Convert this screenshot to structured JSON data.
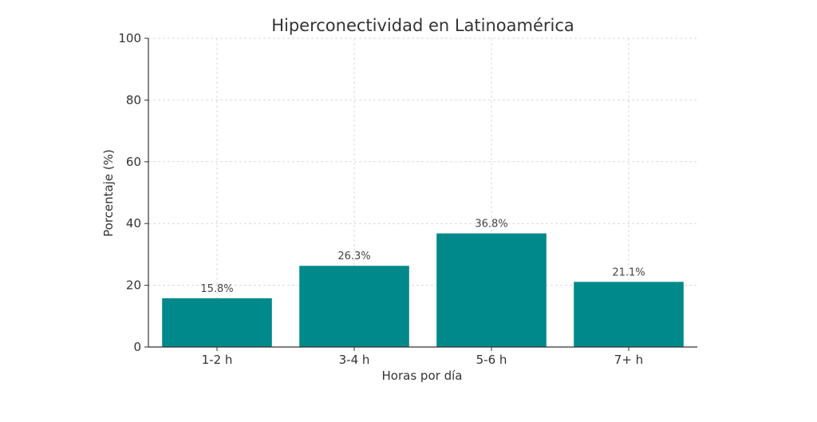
{
  "chart_data": {
    "type": "bar",
    "title": "Hiperconectividad en Latinoamérica",
    "xlabel": "Horas por día",
    "ylabel": "Porcentaje (%)",
    "categories": [
      "1-2 h",
      "3-4 h",
      "5-6 h",
      "7+ h"
    ],
    "values": [
      15.8,
      26.3,
      36.8,
      21.1
    ],
    "data_labels": [
      "15.8%",
      "26.3%",
      "36.8%",
      "21.1%"
    ],
    "ylim": [
      0,
      100
    ],
    "yticks": [
      0,
      20,
      40,
      60,
      80,
      100
    ],
    "grid": true,
    "bar_color": "#00898a"
  }
}
